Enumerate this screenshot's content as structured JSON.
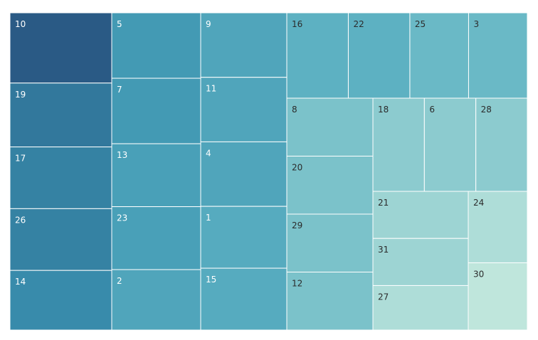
{
  "chart_data": {
    "type": "treemap",
    "title": "",
    "colormap": [
      "#2a5a85",
      "#3a92b0",
      "#5fb3c3",
      "#bfe6dc"
    ],
    "labels": [
      "10",
      "19",
      "17",
      "26",
      "14",
      "5",
      "7",
      "13",
      "23",
      "2",
      "9",
      "11",
      "4",
      "1",
      "15",
      "16",
      "22",
      "25",
      "3",
      "8",
      "20",
      "29",
      "12",
      "18",
      "6",
      "28",
      "21",
      "31",
      "27",
      "24",
      "30"
    ],
    "values": [
      16.5,
      15.0,
      14.5,
      14.5,
      14.0,
      13.0,
      13.0,
      12.5,
      12.5,
      12.0,
      12.0,
      12.0,
      12.0,
      11.5,
      11.5,
      11.0,
      11.0,
      10.5,
      10.5,
      10.0,
      10.0,
      10.0,
      10.0,
      9.5,
      9.5,
      9.5,
      9.0,
      9.0,
      8.5,
      8.5,
      8.0
    ]
  }
}
